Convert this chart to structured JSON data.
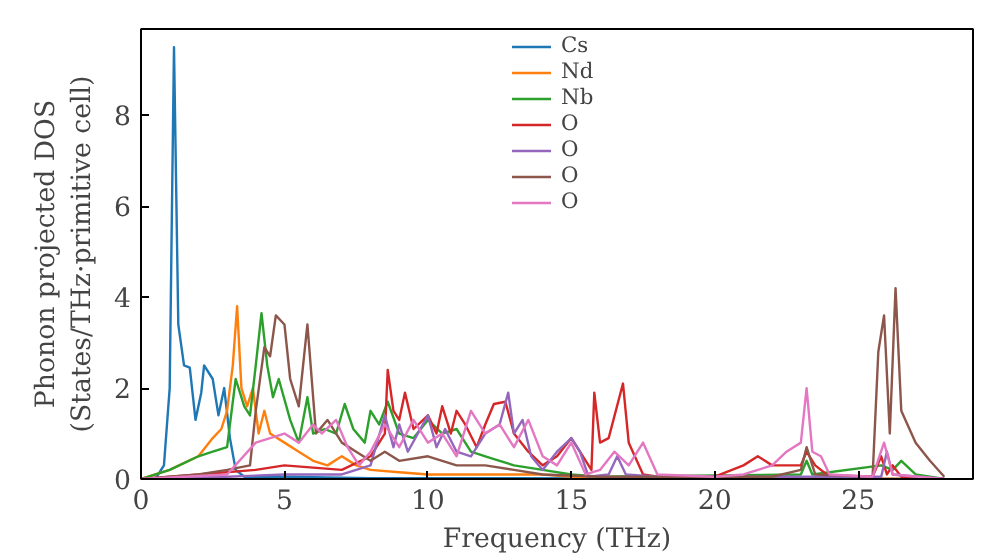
{
  "chart_data": {
    "type": "line",
    "xlabel": "Frequency (THz)",
    "ylabel": "Phonon projected DOS\n(States/THz·primitive cell)",
    "xlim": [
      0,
      29
    ],
    "ylim": [
      0,
      9.9
    ],
    "xticks": [
      0,
      5,
      10,
      15,
      20,
      25
    ],
    "yticks": [
      0,
      2,
      4,
      6,
      8
    ],
    "grid": false,
    "legend": "top",
    "series": [
      {
        "name": "Cs",
        "color": "#1f77b4",
        "x": [
          0,
          0.5,
          0.8,
          1.0,
          1.15,
          1.3,
          1.5,
          1.7,
          1.9,
          2.1,
          2.2,
          2.5,
          2.7,
          2.9,
          3.1,
          3.3,
          3.6,
          5,
          8,
          28
        ],
        "values": [
          0,
          0,
          0.3,
          2,
          9.5,
          3.4,
          2.5,
          2.45,
          1.3,
          1.9,
          2.5,
          2.2,
          1.4,
          2.0,
          0.9,
          0.2,
          0.05,
          0.05,
          0.02,
          0
        ]
      },
      {
        "name": "Nd",
        "color": "#ff7f0e",
        "x": [
          0,
          1,
          2,
          2.5,
          2.8,
          3.0,
          3.2,
          3.35,
          3.5,
          3.7,
          3.9,
          4.1,
          4.3,
          4.5,
          5,
          5.5,
          6,
          6.5,
          7,
          7.5,
          8,
          9,
          10,
          12,
          14,
          15,
          20,
          28
        ],
        "values": [
          0,
          0.2,
          0.5,
          0.9,
          1.1,
          1.5,
          2.5,
          3.8,
          2.0,
          1.6,
          2.0,
          1.0,
          1.5,
          1.0,
          0.8,
          0.6,
          0.4,
          0.3,
          0.5,
          0.3,
          0.2,
          0.15,
          0.1,
          0.1,
          0.1,
          0.05,
          0.02,
          0
        ]
      },
      {
        "name": "Nb",
        "color": "#2ca02c",
        "x": [
          0,
          1,
          2,
          2.5,
          3.0,
          3.3,
          3.6,
          3.8,
          4.0,
          4.2,
          4.4,
          4.6,
          4.8,
          5.2,
          5.5,
          5.8,
          6.0,
          6.4,
          6.8,
          7.1,
          7.4,
          7.8,
          8.0,
          8.3,
          8.6,
          9,
          9.5,
          10,
          10.5,
          11,
          11.5,
          12,
          12.5,
          13,
          14,
          15,
          16,
          23,
          23.2,
          23.4,
          25.8,
          26.2,
          26.5,
          27,
          28
        ],
        "values": [
          0,
          0.2,
          0.5,
          0.6,
          0.7,
          2.2,
          1.6,
          1.4,
          2.5,
          3.65,
          2.5,
          1.8,
          2.2,
          1.3,
          0.8,
          1.8,
          1.0,
          1.1,
          1.0,
          1.65,
          1.1,
          0.8,
          1.5,
          1.2,
          1.7,
          1.0,
          0.9,
          1.3,
          1.0,
          1.1,
          0.6,
          0.5,
          0.4,
          0.3,
          0.2,
          0.1,
          0.05,
          0.1,
          0.4,
          0.1,
          0.3,
          0.2,
          0.4,
          0.1,
          0
        ]
      },
      {
        "name": "O",
        "color": "#d62728",
        "x": [
          0,
          2,
          4,
          5,
          6,
          7,
          8,
          8.5,
          8.6,
          8.8,
          9,
          9.2,
          9.5,
          10,
          10.3,
          10.5,
          10.8,
          11,
          11.3,
          11.7,
          12,
          12.3,
          12.7,
          13,
          13.5,
          14,
          14.5,
          15,
          15.3,
          15.7,
          15.8,
          16.0,
          16.3,
          16.8,
          17,
          17.5,
          18,
          20,
          21,
          21.5,
          22,
          23,
          23.2,
          23.5,
          24,
          25.5,
          25.8,
          26,
          26.2,
          26.5,
          28
        ],
        "values": [
          0,
          0.1,
          0.2,
          0.3,
          0.25,
          0.2,
          0.5,
          1.0,
          2.4,
          1.5,
          1.3,
          1.9,
          1.1,
          1.4,
          1.0,
          1.6,
          1.0,
          1.5,
          1.2,
          0.7,
          1.2,
          1.65,
          1.7,
          1.0,
          0.6,
          0.3,
          0.5,
          0.9,
          0.6,
          0.2,
          1.9,
          0.8,
          0.9,
          2.1,
          0.8,
          0.1,
          0.05,
          0.05,
          0.3,
          0.5,
          0.3,
          0.3,
          0.6,
          0.3,
          0.05,
          0.05,
          0.5,
          0.1,
          0.3,
          0.05,
          0
        ]
      },
      {
        "name": "O",
        "color": "#9467bd",
        "x": [
          0,
          3,
          5,
          7,
          8,
          8.5,
          8.8,
          9,
          9.3,
          10,
          10.3,
          10.6,
          11,
          11.5,
          12,
          12.5,
          12.8,
          13,
          13.3,
          13.6,
          14,
          14.5,
          15,
          15.3,
          15.6,
          16.3,
          16.6,
          16.9,
          18,
          25.8,
          26,
          26.2,
          28
        ],
        "values": [
          0,
          0.05,
          0.1,
          0.1,
          0.3,
          1.4,
          0.7,
          1.2,
          0.6,
          1.4,
          0.7,
          1.1,
          0.6,
          0.5,
          1.0,
          1.2,
          1.9,
          1.0,
          1.3,
          0.5,
          0.2,
          0.6,
          0.9,
          0.6,
          0.05,
          0.1,
          0.5,
          0.1,
          0.05,
          0.05,
          0.6,
          0.1,
          0
        ]
      },
      {
        "name": "O",
        "color": "#8c564b",
        "x": [
          0,
          2,
          3,
          3.8,
          4.0,
          4.3,
          4.5,
          4.7,
          5,
          5.2,
          5.5,
          5.8,
          6.1,
          6.5,
          7,
          7.5,
          8,
          8.5,
          9,
          10,
          11,
          12,
          13,
          14,
          16,
          22,
          23,
          23.2,
          23.5,
          25.5,
          25.7,
          25.9,
          26.1,
          26.3,
          26.5,
          27,
          27.5,
          28
        ],
        "values": [
          0,
          0.1,
          0.2,
          0.3,
          1.5,
          2.9,
          2.7,
          3.6,
          3.4,
          2.2,
          1.6,
          3.4,
          1.0,
          1.3,
          0.8,
          0.6,
          0.4,
          0.6,
          0.4,
          0.5,
          0.3,
          0.3,
          0.2,
          0.1,
          0.05,
          0.05,
          0.2,
          0.7,
          0.1,
          0.05,
          2.8,
          3.6,
          1.0,
          4.2,
          1.5,
          0.8,
          0.4,
          0.05
        ]
      },
      {
        "name": "O",
        "color": "#e377c2",
        "x": [
          0,
          3,
          4,
          4.5,
          5,
          5.5,
          6,
          6.3,
          6.8,
          7.2,
          7.6,
          8,
          8.5,
          9,
          9.5,
          10,
          10.5,
          11,
          11.5,
          12,
          12.5,
          13,
          13.5,
          14,
          14.5,
          15,
          15.5,
          16,
          16.5,
          17,
          17.5,
          18,
          20,
          21,
          22,
          22.5,
          23,
          23.2,
          23.4,
          23.7,
          24,
          25.5,
          25.9,
          26.2,
          28
        ],
        "values": [
          0,
          0.1,
          0.8,
          0.9,
          1.0,
          0.8,
          1.2,
          1.0,
          1.3,
          0.7,
          0.3,
          0.6,
          1.2,
          0.7,
          1.3,
          0.8,
          1.0,
          0.5,
          1.5,
          1.0,
          1.2,
          0.7,
          1.3,
          0.5,
          0.3,
          0.8,
          0.1,
          0.2,
          0.6,
          0.3,
          0.8,
          0.1,
          0.05,
          0.1,
          0.3,
          0.6,
          0.8,
          2.0,
          0.6,
          0.5,
          0.1,
          0.05,
          0.8,
          0.1,
          0
        ]
      }
    ]
  }
}
